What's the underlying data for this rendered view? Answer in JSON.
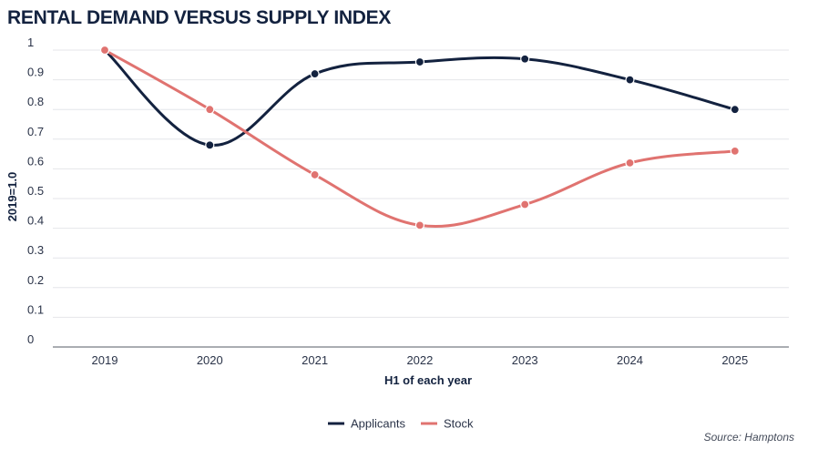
{
  "chart_data": {
    "type": "line",
    "title": "RENTAL DEMAND VERSUS SUPPLY INDEX",
    "xlabel": "H1 of each year",
    "ylabel": "2019=1.0",
    "categories": [
      "2019",
      "2020",
      "2021",
      "2022",
      "2023",
      "2024",
      "2025"
    ],
    "ylim": [
      0,
      1
    ],
    "yticks": [
      "0",
      "0.1",
      "0.2",
      "0.3",
      "0.4",
      "0.5",
      "0.6",
      "0.7",
      "0.8",
      "0.9",
      "1"
    ],
    "grid": true,
    "legend": "bottom-center",
    "series": [
      {
        "name": "Applicants",
        "color": "#13223f",
        "values": [
          1.0,
          0.68,
          0.92,
          0.96,
          0.97,
          0.9,
          0.8
        ]
      },
      {
        "name": "Stock",
        "color": "#e07370",
        "values": [
          1.0,
          0.8,
          0.58,
          0.41,
          0.48,
          0.62,
          0.66
        ]
      }
    ],
    "source": "Source: Hamptons"
  }
}
